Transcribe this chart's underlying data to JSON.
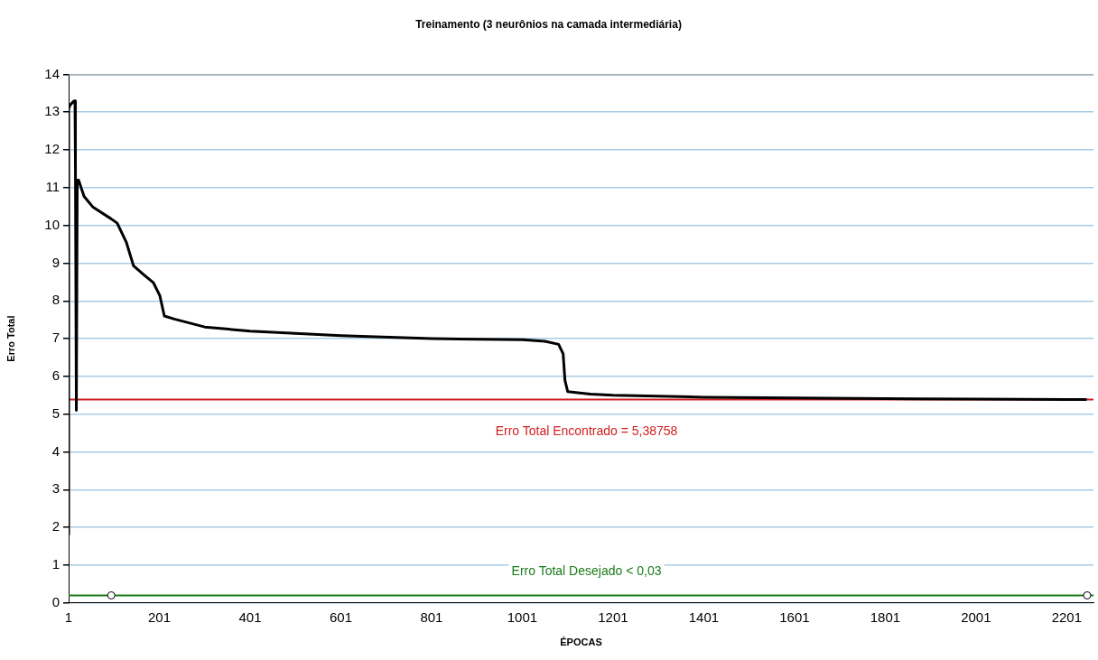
{
  "chart_data": {
    "type": "line",
    "title": "Treinamento (3 neurônios na camada intermediária)",
    "xlabel": "ÉPOCAS",
    "ylabel": "Erro Total",
    "xlim": [
      1,
      2260
    ],
    "xticks": [
      1,
      201,
      401,
      601,
      801,
      1001,
      1201,
      1401,
      1601,
      1801,
      2001,
      2201
    ],
    "ylim": [
      0,
      14
    ],
    "yticks": [
      0,
      1,
      2,
      3,
      4,
      5,
      6,
      7,
      8,
      9,
      10,
      11,
      12,
      13,
      14
    ],
    "grid": "y",
    "legend": false,
    "marker": "none",
    "line_style": "solid",
    "series": [
      {
        "color": "#000000",
        "x": [
          1,
          1,
          5,
          13,
          15,
          16,
          18,
          20,
          23,
          35,
          55,
          94,
          108,
          128,
          144,
          168,
          188,
          202,
          212,
          234,
          301,
          401,
          601,
          801,
          1001,
          1051,
          1081,
          1091,
          1095,
          1101,
          1151,
          1201,
          1401,
          1601,
          1801,
          2001,
          2201,
          2245
        ],
        "values": [
          1.8,
          13.1,
          13.2,
          13.3,
          13.3,
          11.6,
          5.1,
          11.2,
          11.2,
          10.77,
          10.48,
          10.18,
          10.06,
          9.56,
          8.93,
          8.68,
          8.48,
          8.14,
          7.6,
          7.52,
          7.31,
          7.2,
          7.08,
          7.0,
          6.97,
          6.93,
          6.85,
          6.6,
          5.9,
          5.6,
          5.53,
          5.5,
          5.45,
          5.43,
          5.41,
          5.4,
          5.39,
          5.39
        ]
      },
      {
        "type": "scatter",
        "color": "#000000",
        "marker": "circle",
        "x": [
          95,
          2246
        ],
        "values": [
          0.2,
          0.2
        ]
      }
    ],
    "ref_lines": [
      {
        "axis": "y",
        "value": 5.38758,
        "label": "Erro Total Encontrado = 5,38758",
        "color": "#d02020"
      },
      {
        "axis": "y",
        "value": 0.2,
        "label": "Erro Total Desejado < 0,03",
        "color": "#1a7a1a"
      }
    ]
  }
}
